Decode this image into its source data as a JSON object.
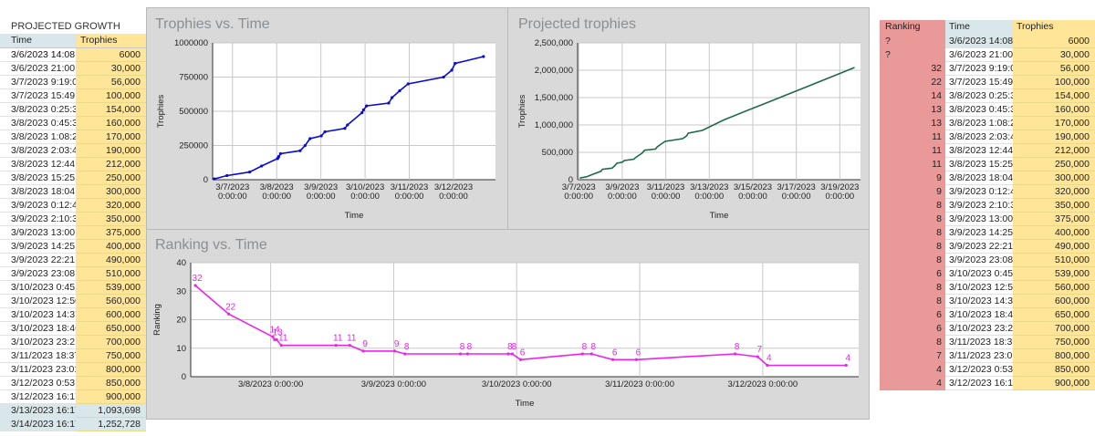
{
  "left_table": {
    "title": "PROJECTED GROWTH",
    "headers": [
      "Time",
      "Trophies"
    ],
    "rows": [
      [
        "3/6/2023 14:08:2",
        "6000"
      ],
      [
        "3/6/2023 21:00:0",
        "30,000"
      ],
      [
        "3/7/2023 9:19:00",
        "56,000"
      ],
      [
        "3/7/2023 15:49:0",
        "100,000"
      ],
      [
        "3/8/2023 0:25:36",
        "154,000"
      ],
      [
        "3/8/2023 0:45:33",
        "160,000"
      ],
      [
        "3/8/2023 1:08:27",
        "170,000"
      ],
      [
        "3/8/2023 2:03:41",
        "190,000"
      ],
      [
        "3/8/2023 12:44:3",
        "212,000"
      ],
      [
        "3/8/2023 15:25:5",
        "250,000"
      ],
      [
        "3/8/2023 18:04:3",
        "300,000"
      ],
      [
        "3/9/2023 0:12:41",
        "320,000"
      ],
      [
        "3/9/2023 2:10:39",
        "350,000"
      ],
      [
        "3/9/2023 13:00:4",
        "375,000"
      ],
      [
        "3/9/2023 14:25:3",
        "400,000"
      ],
      [
        "3/9/2023 22:21:1",
        "490,000"
      ],
      [
        "3/9/2023 23:08:3",
        "510,000"
      ],
      [
        "3/10/2023 0:45:5",
        "539,000"
      ],
      [
        "3/10/2023 12:50",
        "560,000"
      ],
      [
        "3/10/2023 14:37",
        "600,000"
      ],
      [
        "3/10/2023 18:46",
        "650,000"
      ],
      [
        "3/10/2023 23:21",
        "700,000"
      ],
      [
        "3/11/2023 18:37",
        "750,000"
      ],
      [
        "3/11/2023 23:01",
        "800,000"
      ],
      [
        "3/12/2023 0:53:5",
        "850,000"
      ],
      [
        "3/12/2023 16:17",
        "900,000"
      ],
      [
        "3/13/2023 16:17",
        "1,093,698"
      ],
      [
        "3/14/2023 16:17",
        "1,252,728"
      ]
    ]
  },
  "right_table": {
    "headers": [
      "Ranking",
      "Time",
      "Trophies"
    ],
    "rows": [
      [
        "?",
        "3/6/2023 14:08:2",
        "6000"
      ],
      [
        "?",
        "3/6/2023 21:00:0",
        "30,000"
      ],
      [
        "32",
        "3/7/2023 9:19:00",
        "56,000"
      ],
      [
        "22",
        "3/7/2023 15:49:0",
        "100,000"
      ],
      [
        "14",
        "3/8/2023 0:25:36",
        "154,000"
      ],
      [
        "13",
        "3/8/2023 0:45:33",
        "160,000"
      ],
      [
        "13",
        "3/8/2023 1:08:27",
        "170,000"
      ],
      [
        "11",
        "3/8/2023 2:03:41",
        "190,000"
      ],
      [
        "11",
        "3/8/2023 12:44:3",
        "212,000"
      ],
      [
        "11",
        "3/8/2023 15:25:5",
        "250,000"
      ],
      [
        "9",
        "3/8/2023 18:04:3",
        "300,000"
      ],
      [
        "9",
        "3/9/2023 0:12:41",
        "320,000"
      ],
      [
        "8",
        "3/9/2023 2:10:39",
        "350,000"
      ],
      [
        "8",
        "3/9/2023 13:00:4",
        "375,000"
      ],
      [
        "8",
        "3/9/2023 14:25:3",
        "400,000"
      ],
      [
        "8",
        "3/9/2023 22:21:1",
        "490,000"
      ],
      [
        "8",
        "3/9/2023 23:08:3",
        "510,000"
      ],
      [
        "6",
        "3/10/2023 0:45:5",
        "539,000"
      ],
      [
        "8",
        "3/10/2023 12:50",
        "560,000"
      ],
      [
        "8",
        "3/10/2023 14:37",
        "600,000"
      ],
      [
        "6",
        "3/10/2023 18:46",
        "650,000"
      ],
      [
        "6",
        "3/10/2023 23:21",
        "700,000"
      ],
      [
        "8",
        "3/11/2023 18:37",
        "750,000"
      ],
      [
        "7",
        "3/11/2023 23:01",
        "800,000"
      ],
      [
        "4",
        "3/12/2023 0:53:5",
        "850,000"
      ],
      [
        "4",
        "3/12/2023 16:17",
        "900,000"
      ]
    ]
  },
  "colors": {
    "time_header_bg": "#d9e6ea",
    "trophies_bg": "#ffe598",
    "ranking_bg": "#ea9999",
    "panel_bg": "#d9d9d9",
    "trophies_line": "#0b0bd6",
    "projected_line": "#1e6b48",
    "ranking_line": "#ee22ee"
  },
  "chart_data": [
    {
      "type": "line",
      "title": "Trophies vs. Time",
      "xlabel": "Time",
      "ylabel": "Trophies",
      "ylim": [
        0,
        1000000
      ],
      "xlim": [
        6.55,
        12.95
      ],
      "yticks": [
        "0",
        "250000",
        "500000",
        "750000",
        "1000000"
      ],
      "ytick_values": [
        0,
        250000,
        500000,
        750000,
        1000000
      ],
      "xticks": [
        {
          "x": 7,
          "line1": "3/7/2023",
          "line2": "0:00:00"
        },
        {
          "x": 8,
          "line1": "3/8/2023",
          "line2": "0:00:00"
        },
        {
          "x": 9,
          "line1": "3/9/2023",
          "line2": "0:00:00"
        },
        {
          "x": 10,
          "line1": "3/10/2023",
          "line2": "0:00:00"
        },
        {
          "x": 11,
          "line1": "3/11/2023",
          "line2": "0:00:00"
        },
        {
          "x": 12,
          "line1": "3/12/2023",
          "line2": "0:00:00"
        }
      ],
      "x": [
        6.589,
        6.875,
        7.388,
        7.659,
        8.018,
        8.032,
        8.048,
        8.086,
        8.531,
        8.643,
        8.753,
        9.009,
        9.091,
        9.542,
        9.601,
        9.931,
        9.964,
        10.032,
        10.535,
        10.609,
        10.782,
        10.973,
        11.776,
        11.959,
        12.037,
        12.678
      ],
      "series": [
        {
          "name": "Trophies",
          "values": [
            6000,
            30000,
            56000,
            100000,
            154000,
            160000,
            170000,
            190000,
            212000,
            250000,
            300000,
            320000,
            350000,
            375000,
            400000,
            490000,
            510000,
            539000,
            560000,
            600000,
            650000,
            700000,
            750000,
            800000,
            850000,
            900000
          ]
        }
      ]
    },
    {
      "type": "line",
      "title": "Projected trophies",
      "xlabel": "Time",
      "ylabel": "Trophies",
      "ylim": [
        0,
        2500000
      ],
      "xlim": [
        6.95,
        19.95
      ],
      "yticks": [
        "0",
        "500,000",
        "1,000,000",
        "1,500,000",
        "2,000,000",
        "2,500,000"
      ],
      "ytick_values": [
        0,
        500000,
        1000000,
        1500000,
        2000000,
        2500000
      ],
      "xticks": [
        {
          "x": 7,
          "line1": "3/7/2023",
          "line2": "0:00:00"
        },
        {
          "x": 9,
          "line1": "3/9/2023",
          "line2": "0:00:00"
        },
        {
          "x": 11,
          "line1": "3/11/2023",
          "line2": "0:00:00"
        },
        {
          "x": 13,
          "line1": "3/13/2023",
          "line2": "0:00:00"
        },
        {
          "x": 15,
          "line1": "3/15/2023",
          "line2": "0:00:00"
        },
        {
          "x": 17,
          "line1": "3/17/2023",
          "line2": "0:00:00"
        },
        {
          "x": 19,
          "line1": "3/19/2023",
          "line2": "0:00:00"
        }
      ],
      "x": [
        7.05,
        7.388,
        7.659,
        8.018,
        8.086,
        8.531,
        8.643,
        8.753,
        9.009,
        9.091,
        9.542,
        9.601,
        9.931,
        9.964,
        10.032,
        10.535,
        10.609,
        10.782,
        10.973,
        11.776,
        11.959,
        12.037,
        12.678,
        13.678,
        14.678,
        15.678,
        16.678,
        17.678,
        18.678,
        19.678
      ],
      "series": [
        {
          "name": "Projected trophies",
          "values": [
            30000,
            56000,
            100000,
            154000,
            190000,
            212000,
            250000,
            300000,
            320000,
            350000,
            375000,
            400000,
            490000,
            510000,
            539000,
            560000,
            600000,
            650000,
            700000,
            750000,
            800000,
            850000,
            900000,
            1093698,
            1252728,
            1410000,
            1570000,
            1730000,
            1890000,
            2050000
          ]
        }
      ]
    },
    {
      "type": "line",
      "title": "Ranking vs. Time",
      "xlabel": "Time",
      "ylabel": "Ranking",
      "ylim": [
        0,
        40
      ],
      "xlim": [
        7.35,
        12.78
      ],
      "yticks": [
        "0",
        "10",
        "20",
        "30",
        "40"
      ],
      "ytick_values": [
        0,
        10,
        20,
        30,
        40
      ],
      "xticks": [
        {
          "x": 8,
          "line1": "3/8/2023 0:00:00",
          "line2": ""
        },
        {
          "x": 9,
          "line1": "3/9/2023 0:00:00",
          "line2": ""
        },
        {
          "x": 10,
          "line1": "3/10/2023 0:00:00",
          "line2": ""
        },
        {
          "x": 11,
          "line1": "3/11/2023 0:00:00",
          "line2": ""
        },
        {
          "x": 12,
          "line1": "3/12/2023 0:00:00",
          "line2": ""
        }
      ],
      "x": [
        7.388,
        7.659,
        8.018,
        8.032,
        8.048,
        8.086,
        8.531,
        8.643,
        8.753,
        9.009,
        9.091,
        9.542,
        9.601,
        9.931,
        9.964,
        10.032,
        10.535,
        10.609,
        10.782,
        10.973,
        11.776,
        11.959,
        12.037,
        12.678
      ],
      "series": [
        {
          "name": "Ranking",
          "values": [
            32,
            22,
            14,
            13,
            13,
            11,
            11,
            11,
            9,
            9,
            8,
            8,
            8,
            8,
            8,
            6,
            8,
            8,
            6,
            6,
            8,
            7,
            4,
            4
          ]
        }
      ],
      "labels": [
        {
          "x": 7.388,
          "y": 32,
          "text": "32"
        },
        {
          "x": 7.659,
          "y": 22,
          "text": "22"
        },
        {
          "x": 8.018,
          "y": 14,
          "text": "14"
        },
        {
          "x": 8.04,
          "y": 13,
          "text": "13"
        },
        {
          "x": 8.086,
          "y": 11,
          "text": "11"
        },
        {
          "x": 8.531,
          "y": 11,
          "text": "11"
        },
        {
          "x": 8.643,
          "y": 11,
          "text": "11"
        },
        {
          "x": 8.753,
          "y": 9,
          "text": "9"
        },
        {
          "x": 9.009,
          "y": 9,
          "text": "9"
        },
        {
          "x": 9.091,
          "y": 8,
          "text": "8"
        },
        {
          "x": 9.542,
          "y": 8,
          "text": "8"
        },
        {
          "x": 9.601,
          "y": 8,
          "text": "8"
        },
        {
          "x": 9.931,
          "y": 8,
          "text": "8"
        },
        {
          "x": 9.964,
          "y": 8,
          "text": "8"
        },
        {
          "x": 10.032,
          "y": 6,
          "text": "6"
        },
        {
          "x": 10.535,
          "y": 8,
          "text": "8"
        },
        {
          "x": 10.609,
          "y": 8,
          "text": "8"
        },
        {
          "x": 10.782,
          "y": 6,
          "text": "6"
        },
        {
          "x": 10.973,
          "y": 6,
          "text": "6"
        },
        {
          "x": 11.776,
          "y": 8,
          "text": "8"
        },
        {
          "x": 11.959,
          "y": 7,
          "text": "7"
        },
        {
          "x": 12.037,
          "y": 4,
          "text": "4"
        },
        {
          "x": 12.678,
          "y": 4,
          "text": "4"
        }
      ]
    }
  ]
}
